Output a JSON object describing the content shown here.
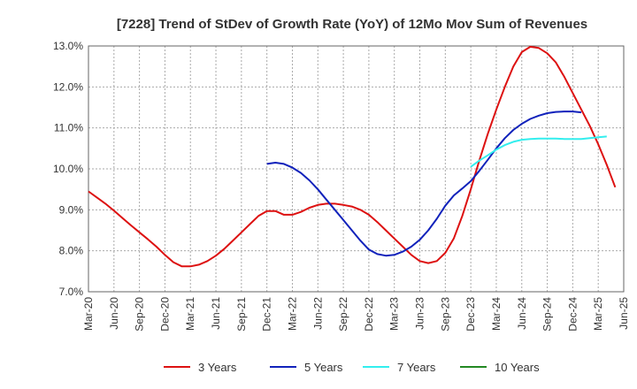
{
  "chart_data": {
    "type": "line",
    "title": "[7228]  Trend of StDev of Growth Rate (YoY) of 12Mo Mov Sum of Revenues",
    "xlabel": "",
    "ylabel": "",
    "ylim": [
      7.0,
      13.0
    ],
    "y_ticks": [
      7.0,
      8.0,
      9.0,
      10.0,
      11.0,
      12.0,
      13.0
    ],
    "y_tick_labels": [
      "7.0%",
      "8.0%",
      "9.0%",
      "10.0%",
      "11.0%",
      "12.0%",
      "13.0%"
    ],
    "x_tick_labels": [
      "Mar-20",
      "Jun-20",
      "Sep-20",
      "Dec-20",
      "Mar-21",
      "Jun-21",
      "Sep-21",
      "Dec-21",
      "Mar-22",
      "Jun-22",
      "Sep-22",
      "Dec-22",
      "Mar-23",
      "Jun-23",
      "Sep-23",
      "Dec-23",
      "Mar-24",
      "Jun-24",
      "Sep-24",
      "Dec-24",
      "Mar-25",
      "Jun-25"
    ],
    "grid": true,
    "legend_position": "bottom",
    "series": [
      {
        "name": "3 Years",
        "color": "#dd1111",
        "start_index": 0,
        "values": [
          9.45,
          9.3,
          9.15,
          8.98,
          8.8,
          8.62,
          8.45,
          8.28,
          8.1,
          7.9,
          7.72,
          7.62,
          7.62,
          7.66,
          7.75,
          7.88,
          8.05,
          8.25,
          8.45,
          8.65,
          8.85,
          8.97,
          8.97,
          8.88,
          8.88,
          8.95,
          9.05,
          9.12,
          9.15,
          9.15,
          9.12,
          9.08,
          9.0,
          8.88,
          8.7,
          8.5,
          8.3,
          8.1,
          7.9,
          7.75,
          7.7,
          7.75,
          7.95,
          8.3,
          8.85,
          9.5,
          10.2,
          10.85,
          11.45,
          12.0,
          12.5,
          12.85,
          12.98,
          12.95,
          12.82,
          12.6,
          12.25,
          11.85,
          11.45,
          11.05,
          10.6,
          10.1,
          9.55
        ]
      },
      {
        "name": "5 Years",
        "color": "#1122bb",
        "start_index": 21,
        "values": [
          10.12,
          10.15,
          10.12,
          10.03,
          9.9,
          9.72,
          9.5,
          9.25,
          9.0,
          8.75,
          8.5,
          8.25,
          8.03,
          7.92,
          7.88,
          7.9,
          7.98,
          8.1,
          8.27,
          8.5,
          8.78,
          9.1,
          9.35,
          9.52,
          9.7,
          9.95,
          10.22,
          10.5,
          10.75,
          10.95,
          11.1,
          11.22,
          11.3,
          11.36,
          11.39,
          11.4,
          11.4,
          11.38
        ]
      },
      {
        "name": "7 Years",
        "color": "#33eeee",
        "start_index": 45,
        "values": [
          10.05,
          10.2,
          10.33,
          10.47,
          10.58,
          10.66,
          10.71,
          10.73,
          10.74,
          10.74,
          10.74,
          10.73,
          10.73,
          10.73,
          10.75,
          10.77,
          10.79
        ]
      },
      {
        "name": "10 Years",
        "color": "#228822",
        "start_index": 62,
        "values": []
      }
    ]
  }
}
